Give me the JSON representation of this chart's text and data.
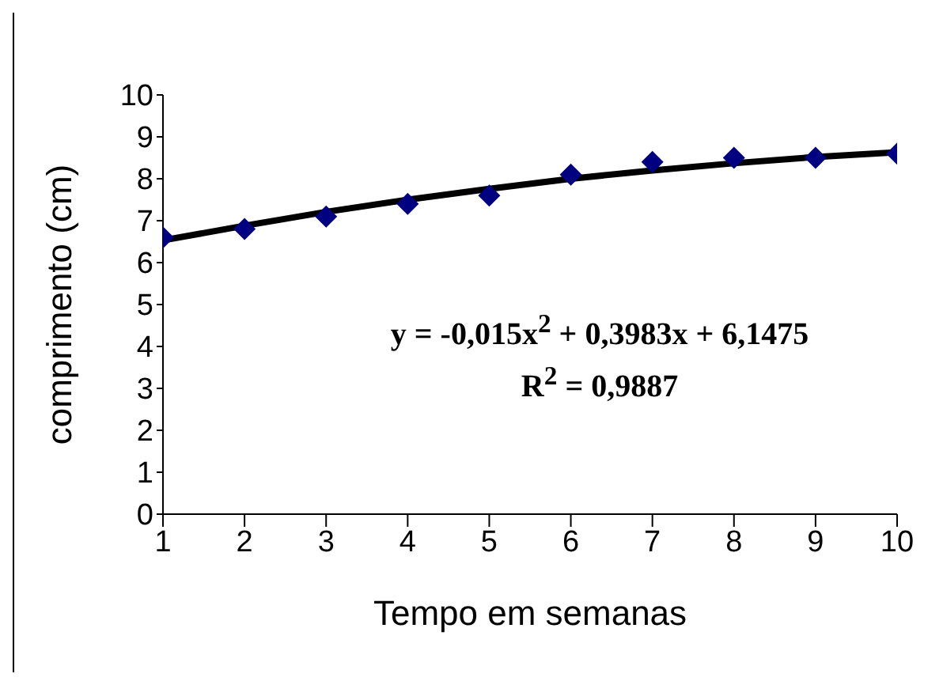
{
  "chart_data": {
    "type": "scatter",
    "xlabel": "Tempo em semanas",
    "ylabel": "comprimento  (cm)",
    "x": [
      1,
      2,
      3,
      4,
      5,
      6,
      7,
      8,
      9,
      10
    ],
    "series": [
      {
        "type": "scatter",
        "color": "#000080",
        "marker": "diamond",
        "values": [
          6.6,
          6.8,
          7.1,
          7.4,
          7.6,
          8.1,
          8.4,
          8.5,
          8.5,
          8.6
        ]
      },
      {
        "type": "line",
        "color": "#000000",
        "marker": "none",
        "x": [
          1,
          2,
          3,
          4,
          5,
          6,
          7,
          8,
          9,
          10
        ],
        "values": [
          6.53,
          6.88,
          7.21,
          7.5,
          7.76,
          8.0,
          8.2,
          8.37,
          8.52,
          8.63
        ]
      }
    ],
    "xlim": [
      1,
      10
    ],
    "xticks": [
      1,
      2,
      3,
      4,
      5,
      6,
      7,
      8,
      9,
      10
    ],
    "ylim": [
      0,
      10
    ],
    "yticks": [
      0,
      1,
      2,
      3,
      4,
      5,
      6,
      7,
      8,
      9,
      10
    ],
    "grid": false,
    "legend": false,
    "annotations": [
      "y = -0,015x$^{2}$ + 0,3983x + 6,1475",
      "R$^{2}$ = 0,9887"
    ]
  }
}
